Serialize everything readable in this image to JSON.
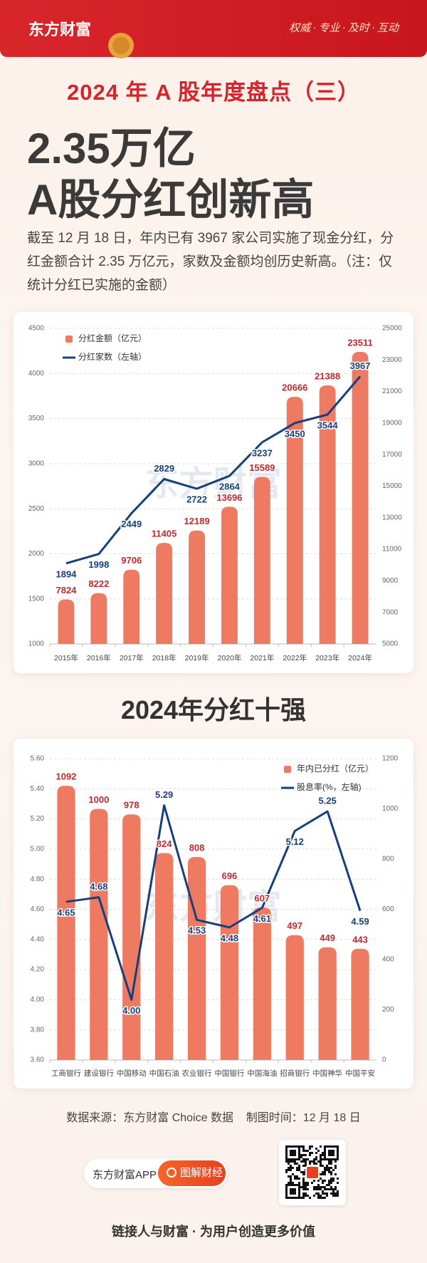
{
  "header": {
    "brand": "东方财富",
    "slogan": "权威 · 专业 · 及时 · 互动"
  },
  "title": "2024 年 A 股年度盘点（三）",
  "headline": [
    "2.35万亿",
    "A股分红创新高"
  ],
  "description": "截至 12 月 18 日，年内已有 3967 家公司实施了现金分红，分红金额合计 2.35 万亿元，家数及金额均创历史新高。（注：仅统计分红已实施的金额）",
  "watermark": "东方财富",
  "chart_data": [
    {
      "type": "combo",
      "legend": "upper left",
      "grid": true,
      "categories": [
        "2015年",
        "2016年",
        "2017年",
        "2018年",
        "2019年",
        "2020年",
        "2021年",
        "2022年",
        "2023年",
        "2024年"
      ],
      "series": [
        {
          "name": "分红金额（亿元）",
          "type": "bar",
          "axis": "y2",
          "color": "#ee7a62",
          "label_color": "#c0282d",
          "values": [
            7824,
            8222,
            9706,
            11405,
            12189,
            13696,
            15589,
            20666,
            21388,
            23511
          ]
        },
        {
          "name": "分红家数（左轴）",
          "type": "line",
          "color": "#173f7c",
          "label_color": "#173f7c",
          "values": [
            1894,
            1998,
            2449,
            2829,
            2722,
            2864,
            3237,
            3450,
            3544,
            3967
          ]
        }
      ],
      "ylim": [
        1000,
        4500
      ],
      "yticks": [
        1000,
        1500,
        2000,
        2500,
        3000,
        3500,
        4000,
        4500
      ],
      "y2lim": [
        5000,
        25000
      ],
      "y2ticks": [
        5000,
        7000,
        9000,
        11000,
        13000,
        15000,
        17000,
        19000,
        21000,
        23000,
        25000
      ]
    },
    {
      "type": "combo",
      "title": "2024年分红十强",
      "legend": "upper right",
      "grid": true,
      "categories": [
        "工商银行",
        "建设银行",
        "中国移动",
        "中国石油",
        "农业银行",
        "中国银行",
        "中国海油",
        "招商银行",
        "中国神华",
        "中国平安"
      ],
      "series": [
        {
          "name": "年内已分红（亿元）",
          "type": "bar",
          "axis": "y2",
          "color": "#ee7a62",
          "label_color": "#c0282d",
          "values": [
            1092,
            1000,
            978,
            824,
            808,
            696,
            607,
            497,
            449,
            443
          ]
        },
        {
          "name": "股息率(%，左轴)",
          "type": "line",
          "color": "#173f7c",
          "label_color": "#173f7c",
          "values": [
            4.65,
            4.68,
            4,
            5.29,
            4.53,
            4.48,
            4.61,
            5.12,
            5.25,
            4.59
          ],
          "value_labels": [
            "4.65",
            "4.68",
            "4.00",
            "5.29",
            "4.53",
            "4.48",
            "4.61",
            "5.12",
            "5.25",
            "4.59"
          ]
        }
      ],
      "ylim": [
        3.6,
        5.6
      ],
      "yticks": [
        {
          "value": 3.6,
          "label": "3.60"
        },
        {
          "value": 3.8,
          "label": "3.80"
        },
        {
          "value": 4,
          "label": "4.00"
        },
        {
          "value": 4.2,
          "label": "4.20"
        },
        {
          "value": 4.4,
          "label": "4.40"
        },
        {
          "value": 4.6,
          "label": "4.60"
        },
        {
          "value": 4.8,
          "label": "4.80"
        },
        {
          "value": 5,
          "label": "5.00"
        },
        {
          "value": 5.2,
          "label": "5.20"
        },
        {
          "value": 5.4,
          "label": "5.40"
        },
        {
          "value": 5.6,
          "label": "5.60"
        }
      ],
      "y2lim": [
        0,
        1200
      ],
      "y2ticks": [
        0,
        200,
        400,
        600,
        800,
        1000,
        1200
      ]
    }
  ],
  "footer": {
    "source": "数据来源：东方财富 Choice 数据",
    "date": "制图时间：12 月 18 日",
    "app": "东方财富APP",
    "search": "图解财经",
    "tagline": "链接人与财富 · 为用户创造更多价值"
  }
}
